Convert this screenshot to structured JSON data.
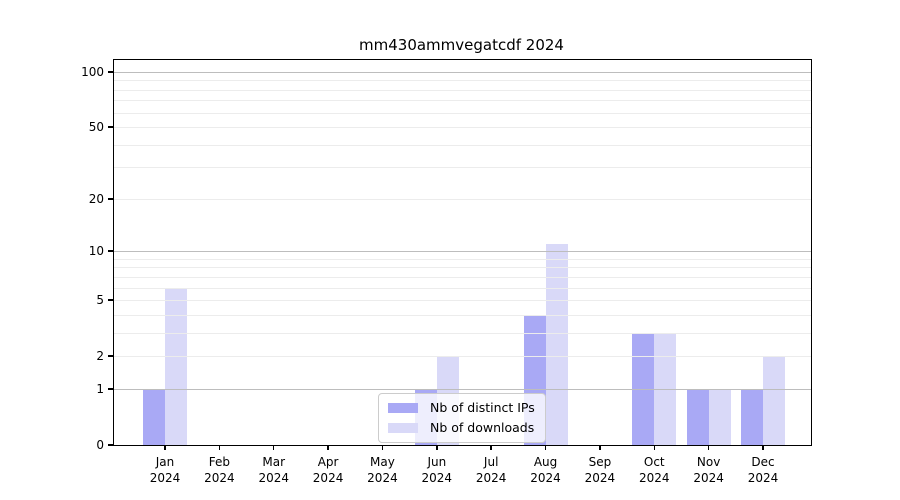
{
  "title": "mm430ammvegatcdf 2024",
  "chart_data": {
    "type": "bar",
    "title": "mm430ammvegatcdf 2024",
    "categories": [
      "Jan 2024",
      "Feb 2024",
      "Mar 2024",
      "Apr 2024",
      "May 2024",
      "Jun 2024",
      "Jul 2024",
      "Aug 2024",
      "Sep 2024",
      "Oct 2024",
      "Nov 2024",
      "Dec 2024"
    ],
    "series": [
      {
        "name": "Nb of distinct IPs",
        "color": "#a9a9f5",
        "values": [
          1,
          0,
          0,
          0,
          0,
          1,
          0,
          4,
          0,
          3,
          1,
          1
        ]
      },
      {
        "name": "Nb of downloads",
        "color": "#d9d9f8",
        "values": [
          6,
          0,
          0,
          0,
          0,
          2,
          0,
          11,
          0,
          3,
          1,
          2
        ]
      }
    ],
    "xlabel": "",
    "ylabel": "",
    "yscale": "log1p",
    "ylim": [
      0,
      115
    ],
    "yticks": [
      0,
      1,
      2,
      5,
      10,
      20,
      50,
      100
    ],
    "major_gridlines": [
      1,
      10,
      100
    ],
    "minor_gridlines": [
      2,
      3,
      4,
      5,
      6,
      7,
      8,
      9,
      20,
      30,
      40,
      50,
      60,
      70,
      80,
      90
    ],
    "grid": true,
    "legend_position": "lower center",
    "bars_per_group": 2
  },
  "colors": {
    "series_distinct_ips": "#a9a9f5",
    "series_downloads": "#d9d9f8",
    "grid_major": "#bdbdbd",
    "grid_minor": "#ececec",
    "axis": "#000000",
    "legend_border": "#cccccc"
  }
}
